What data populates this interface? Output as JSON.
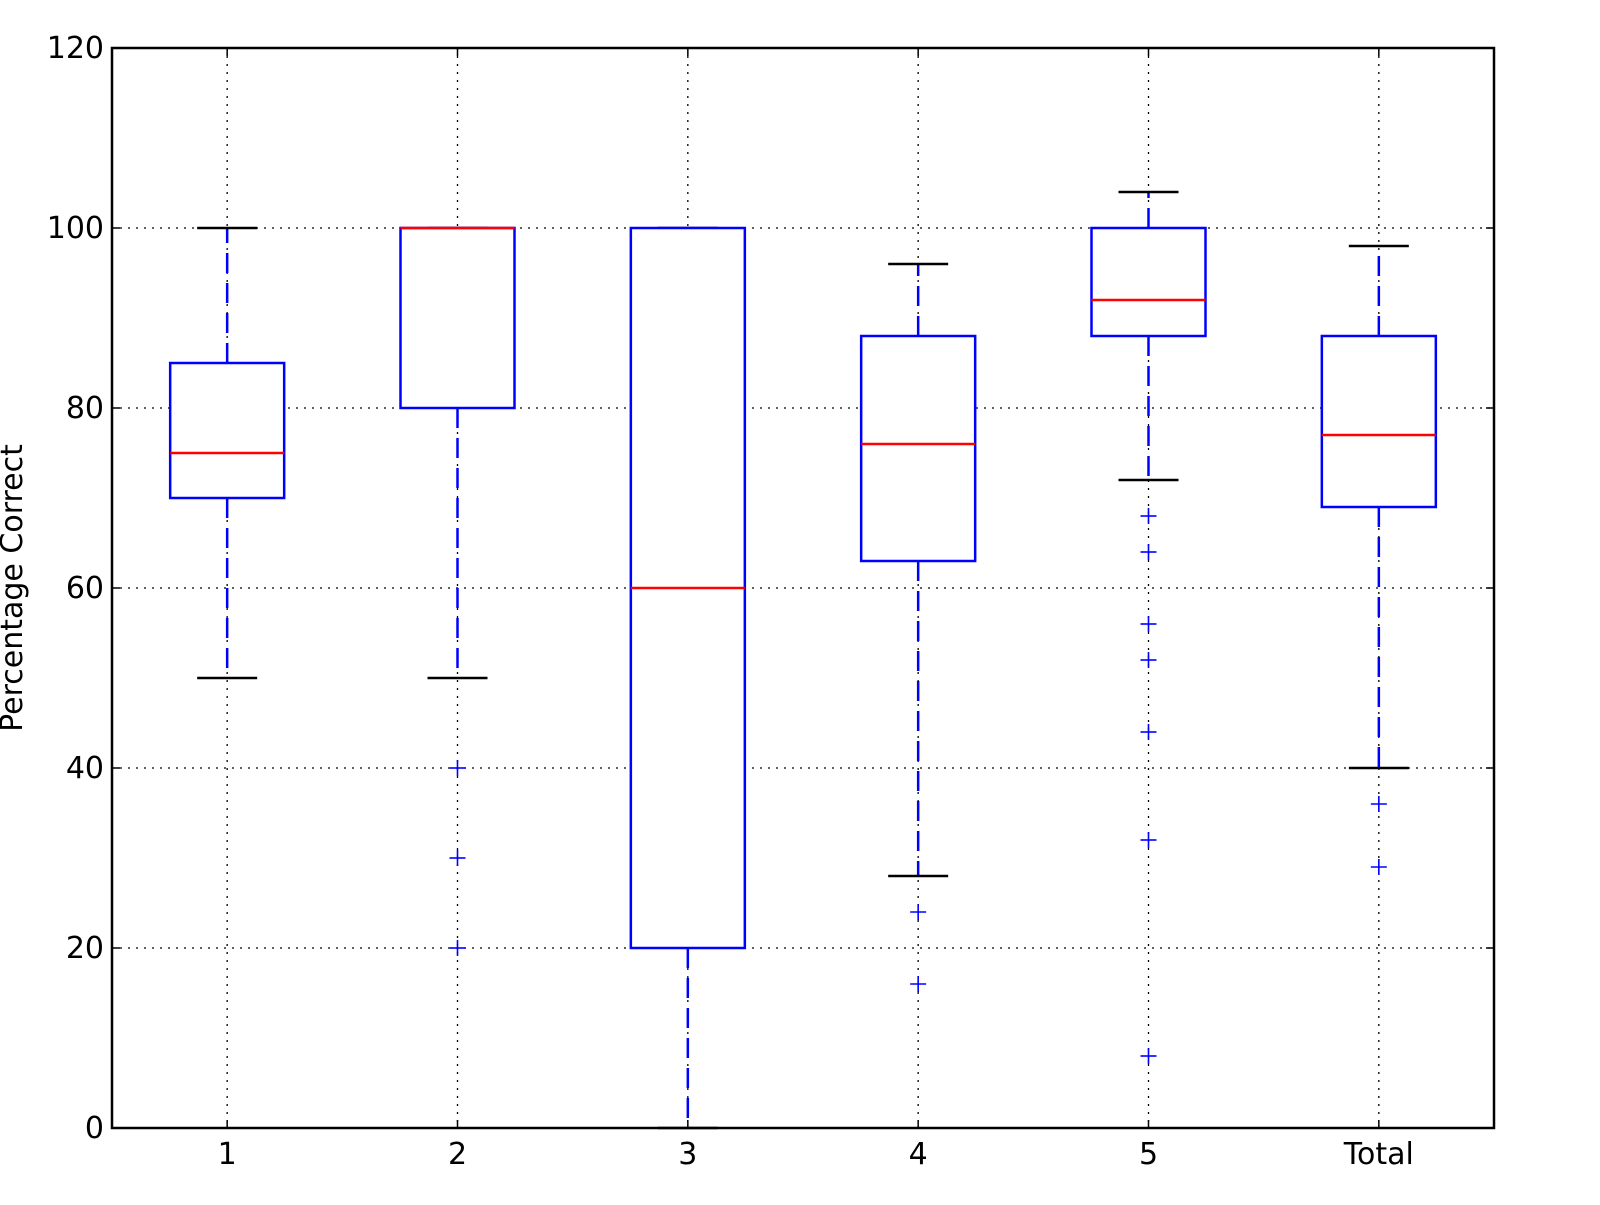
{
  "chart_data": {
    "type": "boxplot",
    "title": "",
    "xlabel": "",
    "ylabel": "Percentage Correct",
    "ylim": [
      0,
      120
    ],
    "yticks": [
      0,
      20,
      40,
      60,
      80,
      100,
      120
    ],
    "grid": true,
    "categories": [
      "1",
      "2",
      "3",
      "4",
      "5",
      "Total"
    ],
    "boxes": [
      {
        "label": "1",
        "whisker_low": 50,
        "q1": 70,
        "median": 75,
        "q3": 85,
        "whisker_high": 100,
        "outliers": []
      },
      {
        "label": "2",
        "whisker_low": 50,
        "q1": 80,
        "median": 100,
        "q3": 100,
        "whisker_high": 100,
        "outliers": [
          40,
          30,
          20
        ]
      },
      {
        "label": "3",
        "whisker_low": 0,
        "q1": 20,
        "median": 60,
        "q3": 100,
        "whisker_high": 100,
        "outliers": []
      },
      {
        "label": "4",
        "whisker_low": 28,
        "q1": 63,
        "median": 76,
        "q3": 88,
        "whisker_high": 96,
        "outliers": [
          24,
          16
        ]
      },
      {
        "label": "5",
        "whisker_low": 72,
        "q1": 88,
        "median": 92,
        "q3": 100,
        "whisker_high": 104,
        "outliers": [
          68,
          64,
          56,
          52,
          44,
          32,
          8
        ]
      },
      {
        "label": "Total",
        "whisker_low": 40,
        "q1": 69,
        "median": 77,
        "q3": 88,
        "whisker_high": 98,
        "outliers": [
          36,
          29
        ]
      }
    ],
    "colors": {
      "box": "#0000ff",
      "median": "#ff0000",
      "whisker_cap": "#000000",
      "outlier": "#0000ff",
      "grid": "#000000"
    }
  }
}
